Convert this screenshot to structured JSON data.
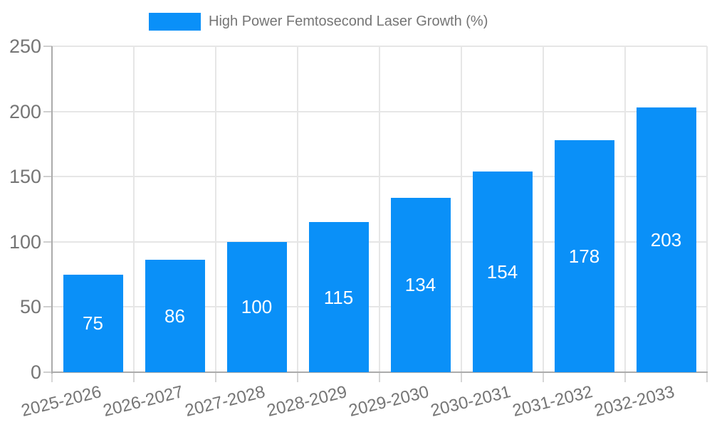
{
  "chart_data": {
    "type": "bar",
    "title": "High Power Femtosecond Laser Growth (%)",
    "categories": [
      "2025-2026",
      "2026-2027",
      "2027-2028",
      "2028-2029",
      "2029-2030",
      "2030-2031",
      "2031-2032",
      "2032-2033"
    ],
    "values": [
      75,
      86,
      100,
      115,
      134,
      154,
      178,
      203
    ],
    "xlabel": "",
    "ylabel": "",
    "ylim": [
      0,
      250
    ],
    "yticks": [
      0,
      50,
      100,
      150,
      200,
      250
    ],
    "grid": true,
    "legend_position": "top-center",
    "bar_color": "#0a90f8",
    "value_label_color": "#ffffff",
    "text_color": "#757575",
    "gridline_color": "#e6e6e6",
    "axis_color": "#ababab",
    "background": "#ffffff"
  }
}
